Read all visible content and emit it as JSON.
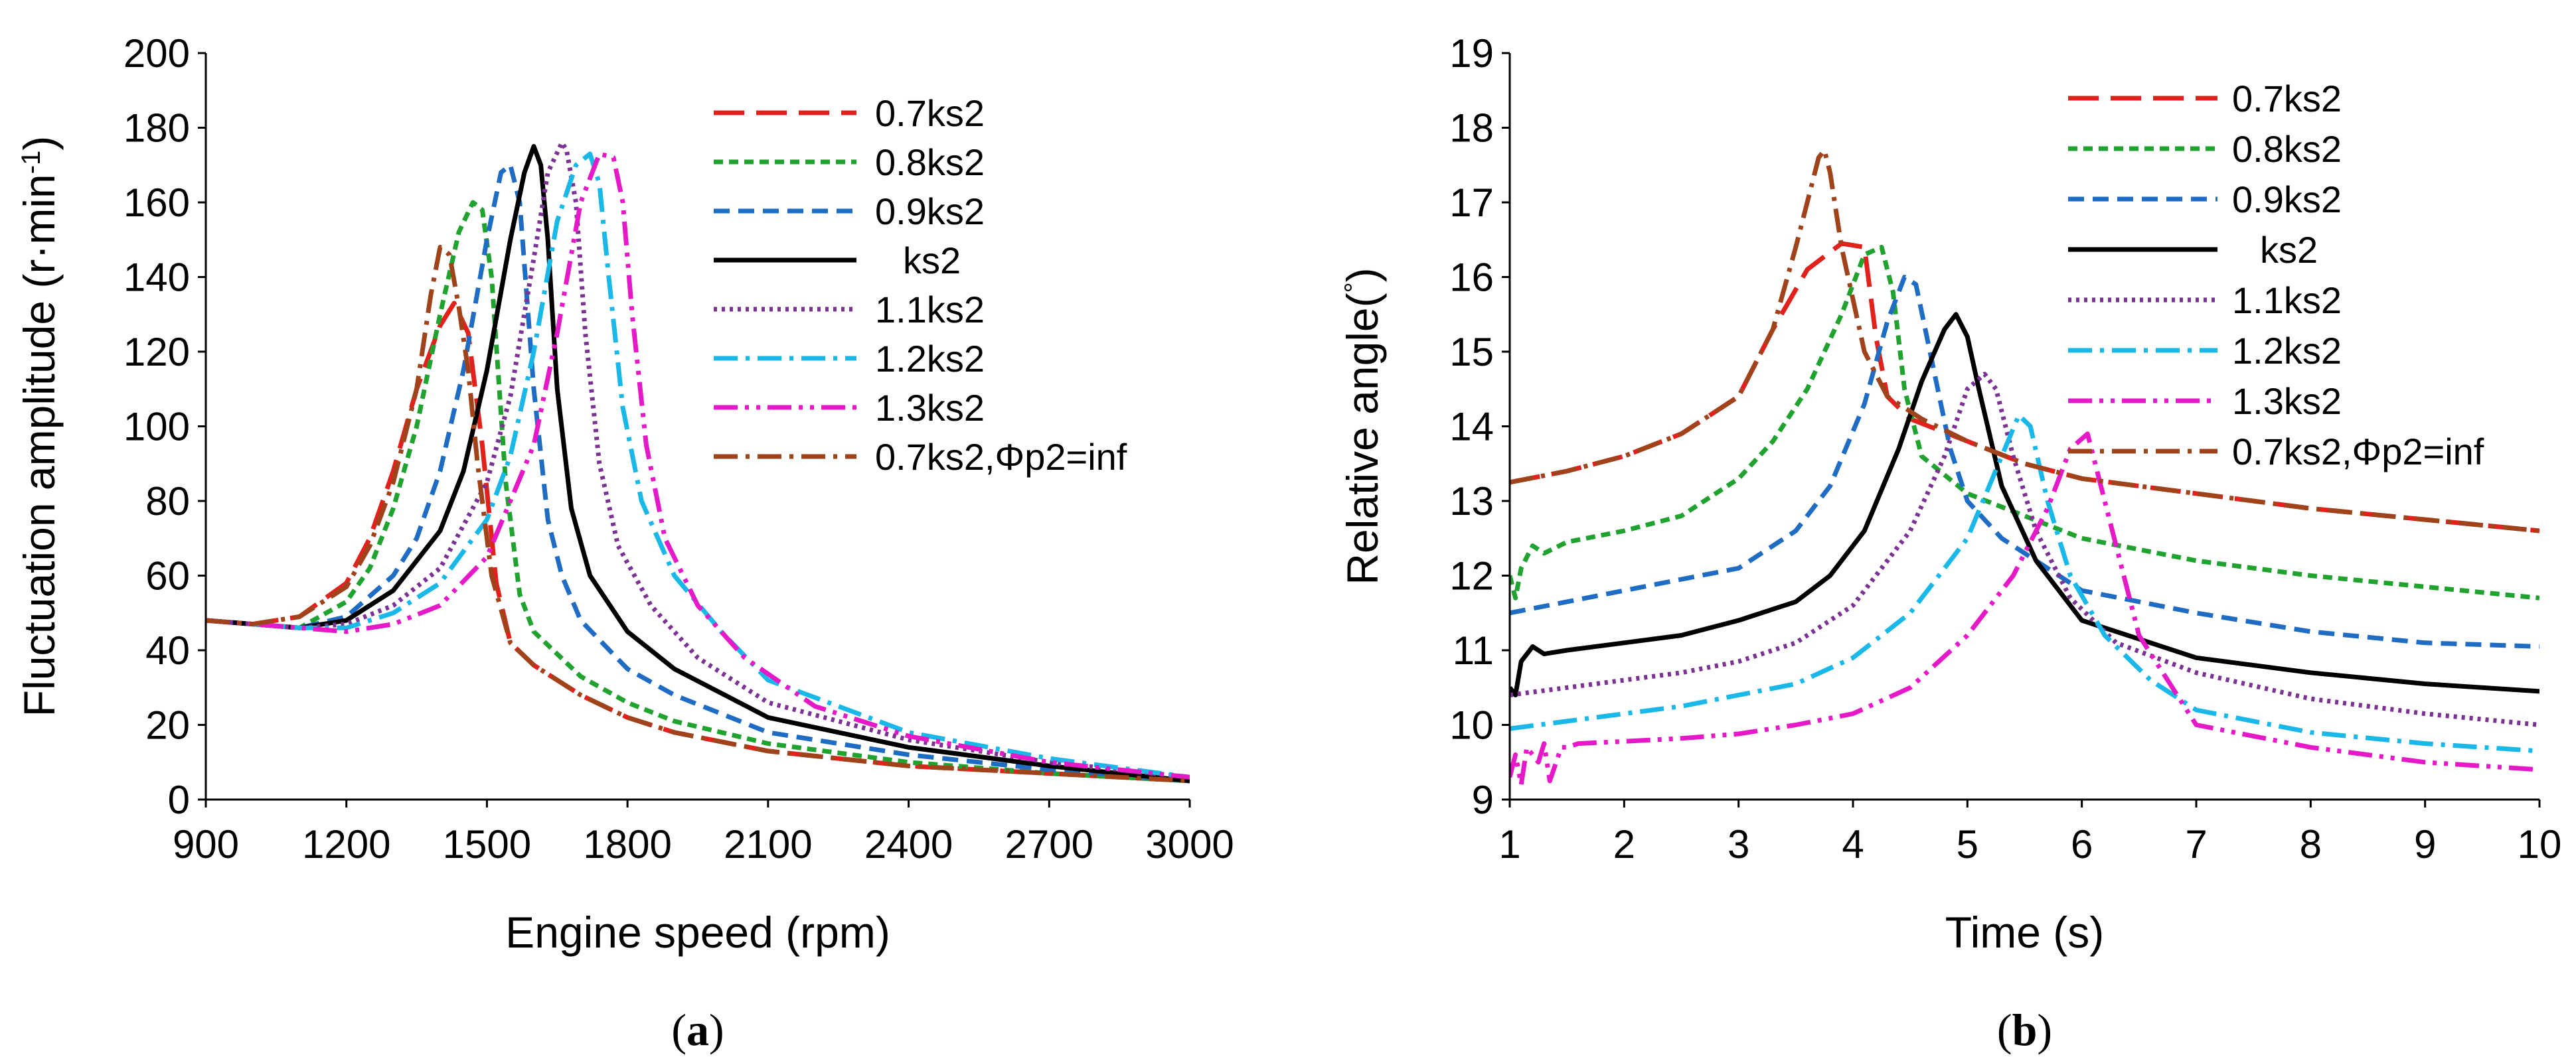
{
  "chart_data": [
    {
      "type": "line",
      "panel": "a",
      "caption_open": "(",
      "caption_letter": "a",
      "caption_close": ")",
      "xlabel": "Engine speed (rpm)",
      "ylabel_main": "Fluctuation amplitude (r·min",
      "ylabel_sup": "-1",
      "ylabel_close": ")",
      "xlim": [
        900,
        3000
      ],
      "ylim": [
        0,
        200
      ],
      "xticks": [
        900,
        1200,
        1500,
        1800,
        2100,
        2400,
        2700,
        3000
      ],
      "yticks": [
        0,
        20,
        40,
        60,
        80,
        100,
        120,
        140,
        160,
        180,
        200
      ],
      "grid": false,
      "legend_position": "top-right",
      "series": [
        {
          "name": "0.7ks2",
          "color": "#e3211c",
          "dash": "long-dash",
          "x": [
            900,
            1000,
            1100,
            1200,
            1250,
            1300,
            1350,
            1400,
            1430,
            1460,
            1490,
            1520,
            1550,
            1600,
            1700,
            1800,
            1900,
            2100,
            2400,
            2700,
            3000
          ],
          "y": [
            48,
            47,
            49,
            58,
            70,
            88,
            110,
            127,
            133,
            125,
            95,
            58,
            42,
            36,
            28,
            22,
            18,
            13,
            9,
            7,
            5
          ]
        },
        {
          "name": "0.8ks2",
          "color": "#1fa32e",
          "dash": "short-dash",
          "x": [
            900,
            1000,
            1100,
            1200,
            1250,
            1300,
            1350,
            1400,
            1440,
            1470,
            1490,
            1510,
            1540,
            1570,
            1600,
            1700,
            1800,
            1900,
            2100,
            2400,
            2700,
            3000
          ],
          "y": [
            48,
            47,
            46,
            53,
            62,
            78,
            100,
            130,
            152,
            160,
            158,
            140,
            85,
            55,
            45,
            33,
            26,
            21,
            15,
            10,
            7,
            5
          ]
        },
        {
          "name": "0.9ks2",
          "color": "#1f6cc4",
          "dash": "dash",
          "x": [
            900,
            1000,
            1100,
            1200,
            1300,
            1350,
            1400,
            1450,
            1500,
            1530,
            1550,
            1570,
            1600,
            1630,
            1660,
            1700,
            1800,
            1900,
            2100,
            2400,
            2700,
            3000
          ],
          "y": [
            48,
            47,
            46,
            49,
            60,
            70,
            88,
            115,
            150,
            168,
            170,
            160,
            110,
            75,
            60,
            48,
            35,
            28,
            18,
            12,
            8,
            5
          ]
        },
        {
          "name": "ks2",
          "color": "#000000",
          "dash": "solid",
          "x": [
            900,
            1000,
            1100,
            1200,
            1300,
            1400,
            1450,
            1500,
            1550,
            1580,
            1600,
            1615,
            1630,
            1650,
            1680,
            1720,
            1800,
            1900,
            2100,
            2400,
            2700,
            3000
          ],
          "y": [
            48,
            47,
            46,
            48,
            56,
            72,
            88,
            115,
            150,
            168,
            175,
            170,
            150,
            110,
            78,
            60,
            45,
            35,
            22,
            14,
            9,
            5
          ]
        },
        {
          "name": "1.1ks2",
          "color": "#7b3294",
          "dash": "dot",
          "x": [
            900,
            1000,
            1100,
            1200,
            1300,
            1400,
            1500,
            1550,
            1600,
            1630,
            1660,
            1670,
            1690,
            1710,
            1740,
            1780,
            1850,
            1950,
            2100,
            2400,
            2700,
            3000
          ],
          "y": [
            48,
            47,
            46,
            47,
            52,
            62,
            85,
            108,
            145,
            168,
            176,
            174,
            160,
            125,
            90,
            68,
            52,
            38,
            26,
            16,
            10,
            6
          ]
        },
        {
          "name": "1.2ks2",
          "color": "#19b8e8",
          "dash": "dash-dot",
          "x": [
            900,
            1000,
            1100,
            1200,
            1300,
            1400,
            1500,
            1550,
            1600,
            1650,
            1690,
            1720,
            1740,
            1760,
            1790,
            1830,
            1900,
            2000,
            2100,
            2400,
            2700,
            3000
          ],
          "y": [
            48,
            47,
            46,
            46,
            50,
            58,
            75,
            92,
            120,
            155,
            170,
            173,
            165,
            140,
            105,
            80,
            60,
            45,
            32,
            18,
            11,
            6
          ]
        },
        {
          "name": "1.3ks2",
          "color": "#e619c8",
          "dash": "dash-dot-dot",
          "x": [
            900,
            1000,
            1100,
            1200,
            1300,
            1400,
            1500,
            1600,
            1650,
            1700,
            1740,
            1770,
            1790,
            1810,
            1840,
            1880,
            1950,
            2050,
            2200,
            2400,
            2700,
            3000
          ],
          "y": [
            48,
            47,
            46,
            45,
            47,
            52,
            65,
            95,
            125,
            160,
            173,
            172,
            160,
            130,
            95,
            70,
            52,
            38,
            25,
            17,
            10,
            6
          ]
        },
        {
          "name": "0.7ks2,Φp2=inf",
          "color": "#a0421a",
          "dash": "dash-dot",
          "x": [
            900,
            1000,
            1100,
            1200,
            1250,
            1300,
            1350,
            1380,
            1400,
            1420,
            1440,
            1460,
            1480,
            1510,
            1550,
            1600,
            1700,
            1800,
            1900,
            2100,
            2400,
            2700,
            3000
          ],
          "y": [
            48,
            47,
            49,
            57,
            68,
            85,
            110,
            135,
            148,
            146,
            132,
            115,
            90,
            60,
            42,
            36,
            28,
            22,
            18,
            13,
            9,
            7,
            5
          ]
        }
      ]
    },
    {
      "type": "line",
      "panel": "b",
      "caption_open": "(",
      "caption_letter": "b",
      "caption_close": ")",
      "xlabel": "Time (s)",
      "ylabel_main": "Relative angle(",
      "ylabel_sup": "°",
      "ylabel_close": ")",
      "xlim": [
        1,
        10
      ],
      "ylim": [
        9,
        19
      ],
      "xticks": [
        1,
        2,
        3,
        4,
        5,
        6,
        7,
        8,
        9,
        10
      ],
      "yticks": [
        9,
        10,
        11,
        12,
        13,
        14,
        15,
        16,
        17,
        18,
        19
      ],
      "grid": false,
      "legend_position": "top-right",
      "series": [
        {
          "name": "0.7ks2",
          "color": "#e3211c",
          "dash": "long-dash",
          "x": [
            1,
            1.5,
            2,
            2.5,
            3,
            3.3,
            3.6,
            3.9,
            4.1,
            4.2,
            4.3,
            4.5,
            5,
            5.5,
            6,
            7,
            8,
            9,
            10
          ],
          "y": [
            13.25,
            13.4,
            13.6,
            13.9,
            14.4,
            15.3,
            16.1,
            16.45,
            16.4,
            15.2,
            14.4,
            14.1,
            13.8,
            13.5,
            13.3,
            13.1,
            12.9,
            12.75,
            12.6
          ]
        },
        {
          "name": "0.8ks2",
          "color": "#1fa32e",
          "dash": "short-dash",
          "x": [
            1,
            1.05,
            1.1,
            1.2,
            1.3,
            1.5,
            2,
            2.5,
            3,
            3.3,
            3.6,
            3.9,
            4.1,
            4.25,
            4.35,
            4.45,
            4.6,
            5,
            5.5,
            6,
            7,
            8,
            9,
            10
          ],
          "y": [
            12.0,
            11.7,
            12.1,
            12.4,
            12.3,
            12.45,
            12.6,
            12.8,
            13.3,
            13.8,
            14.5,
            15.5,
            16.3,
            16.4,
            15.8,
            14.5,
            13.6,
            13.1,
            12.8,
            12.5,
            12.2,
            12.0,
            11.85,
            11.7
          ]
        },
        {
          "name": "0.9ks2",
          "color": "#1f6cc4",
          "dash": "dash",
          "x": [
            1,
            1.5,
            2,
            2.5,
            3,
            3.5,
            3.8,
            4.1,
            4.3,
            4.45,
            4.55,
            4.7,
            4.85,
            5,
            5.3,
            5.7,
            6,
            7,
            8,
            9,
            10
          ],
          "y": [
            11.5,
            11.65,
            11.8,
            11.95,
            12.1,
            12.6,
            13.2,
            14.3,
            15.4,
            16.0,
            15.9,
            14.8,
            13.7,
            13.0,
            12.5,
            12.1,
            11.8,
            11.5,
            11.25,
            11.1,
            11.05
          ]
        },
        {
          "name": "ks2",
          "color": "#000000",
          "dash": "solid",
          "x": [
            1,
            1.05,
            1.1,
            1.2,
            1.3,
            1.5,
            2,
            2.5,
            3,
            3.5,
            3.8,
            4.1,
            4.4,
            4.6,
            4.8,
            4.9,
            5.0,
            5.1,
            5.3,
            5.6,
            6,
            6.5,
            7,
            8,
            9,
            10
          ],
          "y": [
            10.5,
            10.4,
            10.85,
            11.05,
            10.95,
            11.0,
            11.1,
            11.2,
            11.4,
            11.65,
            12.0,
            12.6,
            13.7,
            14.6,
            15.3,
            15.5,
            15.2,
            14.5,
            13.2,
            12.2,
            11.4,
            11.15,
            10.9,
            10.7,
            10.55,
            10.45
          ]
        },
        {
          "name": "1.1ks2",
          "color": "#7b3294",
          "dash": "dot",
          "x": [
            1,
            1.5,
            2,
            2.5,
            3,
            3.5,
            4,
            4.5,
            4.8,
            5.0,
            5.15,
            5.25,
            5.4,
            5.6,
            5.9,
            6.3,
            7,
            8,
            9,
            10
          ],
          "y": [
            10.4,
            10.5,
            10.6,
            10.7,
            10.85,
            11.1,
            11.6,
            12.6,
            13.6,
            14.5,
            14.7,
            14.5,
            13.6,
            12.6,
            11.7,
            11.1,
            10.7,
            10.35,
            10.15,
            10.0
          ]
        },
        {
          "name": "1.2ks2",
          "color": "#19b8e8",
          "dash": "dash-dot",
          "x": [
            1,
            1.5,
            2,
            2.5,
            3,
            3.5,
            4,
            4.5,
            5,
            5.3,
            5.45,
            5.55,
            5.7,
            5.9,
            6.2,
            6.6,
            7,
            8,
            9,
            10
          ],
          "y": [
            9.95,
            10.05,
            10.15,
            10.25,
            10.4,
            10.55,
            10.9,
            11.5,
            12.5,
            13.6,
            14.15,
            14.0,
            13.0,
            12.0,
            11.2,
            10.6,
            10.2,
            9.9,
            9.75,
            9.65
          ]
        },
        {
          "name": "1.3ks2",
          "color": "#e619c8",
          "dash": "dash-dot-dot",
          "x": [
            1,
            1.05,
            1.1,
            1.15,
            1.25,
            1.3,
            1.35,
            1.45,
            1.5,
            1.6,
            2,
            2.5,
            3,
            3.5,
            4,
            4.5,
            5,
            5.4,
            5.7,
            5.9,
            6.05,
            6.2,
            6.5,
            7,
            8,
            9,
            10
          ],
          "y": [
            9.3,
            9.6,
            9.2,
            9.7,
            9.5,
            9.75,
            9.25,
            9.7,
            9.7,
            9.75,
            9.78,
            9.82,
            9.88,
            10.0,
            10.15,
            10.5,
            11.2,
            12.0,
            12.9,
            13.7,
            13.9,
            13.0,
            11.2,
            10.0,
            9.7,
            9.5,
            9.4
          ]
        },
        {
          "name": "0.7ks2,Φp2=inf",
          "color": "#a0421a",
          "dash": "dash-dot",
          "x": [
            1,
            1.5,
            2,
            2.5,
            3,
            3.3,
            3.5,
            3.6,
            3.7,
            3.75,
            3.8,
            3.9,
            4.0,
            4.1,
            4.3,
            4.6,
            5,
            5.5,
            6,
            7,
            8,
            9,
            10
          ],
          "y": [
            13.25,
            13.4,
            13.6,
            13.9,
            14.4,
            15.3,
            16.4,
            17.0,
            17.6,
            17.7,
            17.4,
            16.4,
            15.7,
            15.0,
            14.4,
            14.1,
            13.8,
            13.5,
            13.3,
            13.1,
            12.9,
            12.75,
            12.6
          ]
        }
      ]
    }
  ]
}
